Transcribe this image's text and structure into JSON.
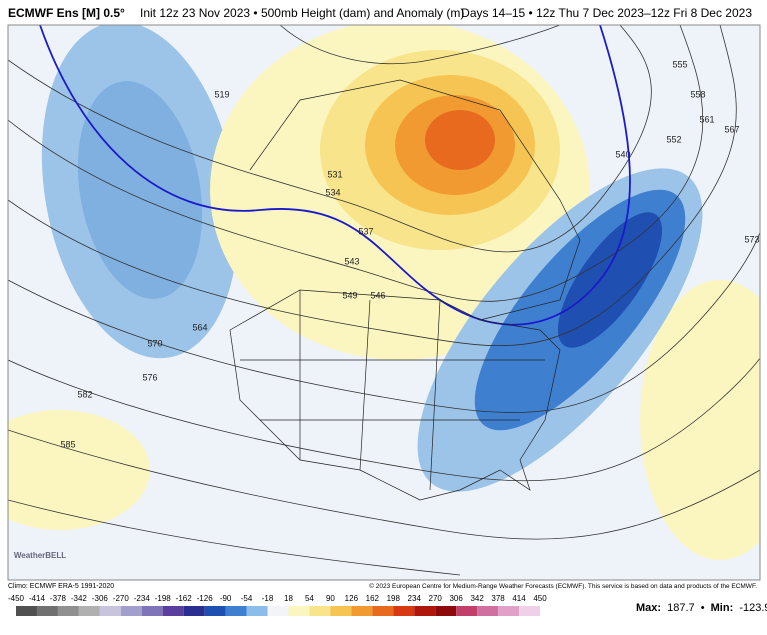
{
  "header": {
    "model": "ECMWF Ens [M] 0.5°",
    "description": "Init 12z 23 Nov 2023 • 500mb Height (dam) and Anomaly (m)",
    "valid": "Days 14–15 • 12z Thu 7 Dec 2023–12z Fri 8 Dec 2023"
  },
  "map": {
    "contour_labels": [
      "519",
      "531",
      "534",
      "537",
      "540",
      "543",
      "546",
      "549",
      "552",
      "555",
      "558",
      "561",
      "564",
      "567",
      "570",
      "573",
      "576",
      "582",
      "585"
    ],
    "logo": "WeatherBELL"
  },
  "footer": {
    "climo": "Climo: ECMWF ERA-5 1991-2020",
    "copyright": "© 2023 European Centre for Medium-Range Weather Forecasts (ECMWF). This service is based on data and products of the ECMWF.",
    "colorbar": {
      "ticks": [
        -450,
        -414,
        -378,
        -342,
        -306,
        -270,
        -234,
        -198,
        -162,
        -126,
        -90,
        -54,
        -18,
        18,
        54,
        90,
        126,
        162,
        198,
        234,
        270,
        306,
        342,
        378,
        414,
        450
      ],
      "colors": [
        "#505050",
        "#707070",
        "#909090",
        "#b0b0b0",
        "#c8c4dc",
        "#a39fcc",
        "#7f74b8",
        "#5a3f9e",
        "#2a2f8f",
        "#1f4fb0",
        "#3f7fd0",
        "#8cbde8",
        "#f2f4f8",
        "#fbf5c0",
        "#f8e48a",
        "#f6c453",
        "#f19a32",
        "#e86a1e",
        "#d63a12",
        "#b0170c",
        "#8c0a0a",
        "#c0406a",
        "#d070a0",
        "#e0a0c8",
        "#f0d0e8"
      ]
    },
    "max_label": "Max:",
    "max": 187.7,
    "separator": "•",
    "min_label": "Min:",
    "min": -123.9
  }
}
